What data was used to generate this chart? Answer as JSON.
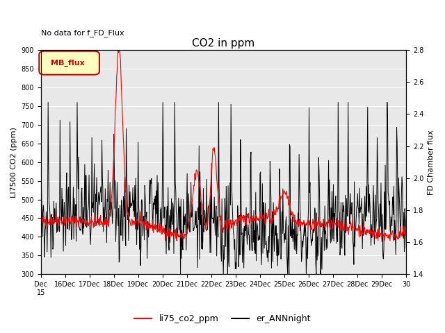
{
  "title": "CO2 in ppm",
  "no_data_text": "No data for f_FD_Flux",
  "ylabel_left": "LI7500 CO2 (ppm)",
  "ylabel_right": "FD Chamber flux",
  "ylim_left": [
    300,
    900
  ],
  "ylim_right": [
    1.4,
    2.8
  ],
  "legend_entries": [
    "li75_co2_ppm",
    "er_ANNnight"
  ],
  "legend_colors": [
    "red",
    "black"
  ],
  "mb_flux_label": "MB_flux",
  "plot_bg_color": "#e8e8e8",
  "title_fontsize": 11,
  "axis_fontsize": 8,
  "tick_fontsize": 7
}
